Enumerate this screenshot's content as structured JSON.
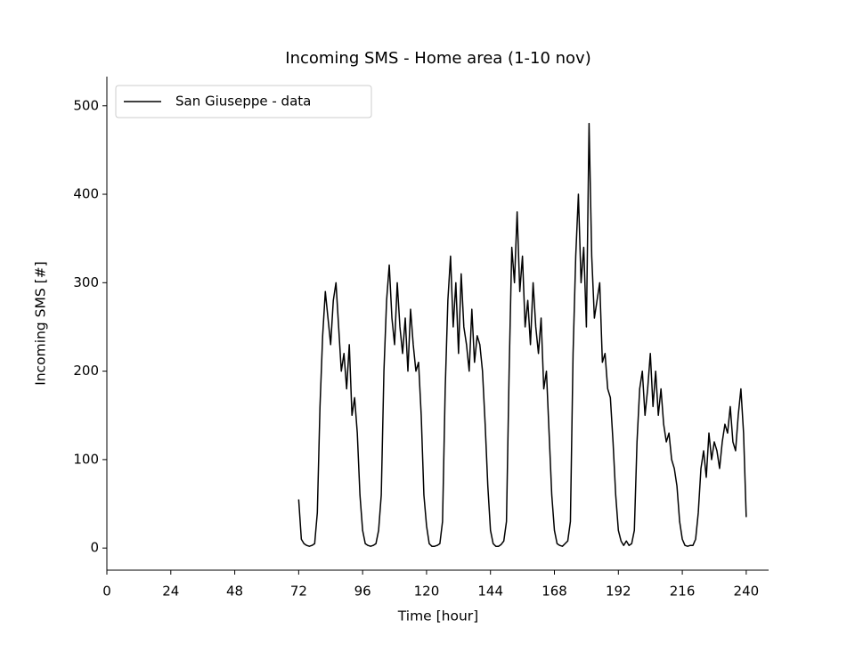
{
  "chart_data": {
    "type": "line",
    "title": "Incoming SMS - Home area (1-10 nov)",
    "xlabel": "Time [hour]",
    "ylabel": "Incoming SMS [#]",
    "x": [
      72,
      73,
      74,
      75,
      76,
      77,
      78,
      79,
      80,
      81,
      82,
      83,
      84,
      85,
      86,
      87,
      88,
      89,
      90,
      91,
      92,
      93,
      94,
      95,
      96,
      97,
      98,
      99,
      100,
      101,
      102,
      103,
      104,
      105,
      106,
      107,
      108,
      109,
      110,
      111,
      112,
      113,
      114,
      115,
      116,
      117,
      118,
      119,
      120,
      121,
      122,
      123,
      124,
      125,
      126,
      127,
      128,
      129,
      130,
      131,
      132,
      133,
      134,
      135,
      136,
      137,
      138,
      139,
      140,
      141,
      142,
      143,
      144,
      145,
      146,
      147,
      148,
      149,
      150,
      151,
      152,
      153,
      154,
      155,
      156,
      157,
      158,
      159,
      160,
      161,
      162,
      163,
      164,
      165,
      166,
      167,
      168,
      169,
      170,
      171,
      172,
      173,
      174,
      175,
      176,
      177,
      178,
      179,
      180,
      181,
      182,
      183,
      184,
      185,
      186,
      187,
      188,
      189,
      190,
      191,
      192,
      193,
      194,
      195,
      196,
      197,
      198,
      199,
      200,
      201,
      202,
      203,
      204,
      205,
      206,
      207,
      208,
      209,
      210,
      211,
      212,
      213,
      214,
      215,
      216,
      217,
      218,
      219,
      220,
      221,
      222,
      223,
      224,
      225,
      226,
      227,
      228,
      229,
      230,
      231,
      232,
      233,
      234,
      235,
      236,
      237,
      238,
      239,
      240
    ],
    "series": [
      {
        "name": "San Giuseppe - data",
        "color": "#000000",
        "values": [
          55,
          10,
          5,
          3,
          2,
          3,
          5,
          40,
          160,
          240,
          290,
          260,
          230,
          280,
          300,
          250,
          200,
          220,
          180,
          230,
          150,
          170,
          130,
          60,
          20,
          5,
          3,
          2,
          3,
          5,
          20,
          60,
          200,
          280,
          320,
          260,
          230,
          300,
          250,
          220,
          260,
          200,
          270,
          230,
          200,
          210,
          150,
          60,
          25,
          5,
          2,
          2,
          3,
          5,
          30,
          180,
          280,
          330,
          250,
          300,
          220,
          310,
          250,
          230,
          200,
          270,
          210,
          240,
          230,
          200,
          140,
          70,
          20,
          5,
          2,
          2,
          4,
          8,
          30,
          200,
          340,
          300,
          380,
          290,
          330,
          250,
          280,
          230,
          300,
          250,
          220,
          260,
          180,
          200,
          130,
          60,
          20,
          5,
          3,
          2,
          5,
          8,
          30,
          220,
          330,
          400,
          300,
          340,
          250,
          480,
          330,
          260,
          280,
          300,
          210,
          220,
          180,
          170,
          120,
          60,
          20,
          8,
          3,
          8,
          3,
          5,
          20,
          120,
          180,
          200,
          150,
          180,
          220,
          160,
          200,
          150,
          180,
          140,
          120,
          130,
          100,
          90,
          70,
          30,
          10,
          3,
          2,
          3,
          3,
          10,
          40,
          90,
          110,
          80,
          130,
          100,
          120,
          110,
          90,
          120,
          140,
          130,
          160,
          120,
          110,
          150,
          180,
          130,
          35
        ]
      }
    ],
    "xlim": [
      0,
      248.4
    ],
    "ylim": [
      -25,
      533
    ],
    "xticks": [
      0,
      24,
      48,
      72,
      96,
      120,
      144,
      168,
      192,
      216,
      240
    ],
    "yticks": [
      0,
      100,
      200,
      300,
      400,
      500
    ],
    "legend": "upper left",
    "grid": false
  }
}
